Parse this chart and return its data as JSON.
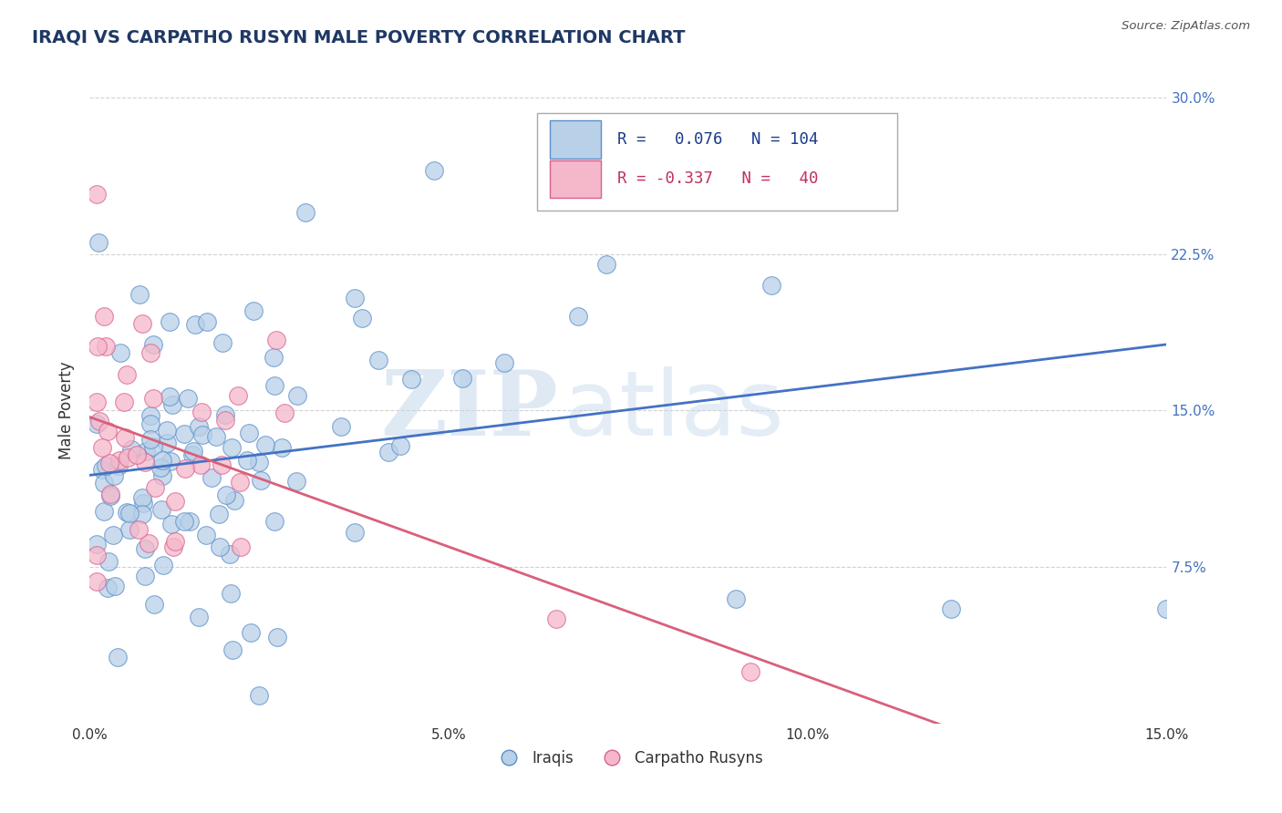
{
  "title": "IRAQI VS CARPATHO RUSYN MALE POVERTY CORRELATION CHART",
  "source": "Source: ZipAtlas.com",
  "ylabel": "Male Poverty",
  "watermark_zip": "ZIP",
  "watermark_atlas": "atlas",
  "xlim": [
    0.0,
    0.15
  ],
  "ylim": [
    0.0,
    0.3
  ],
  "xtick_vals": [
    0.0,
    0.05,
    0.1,
    0.15
  ],
  "xtick_labels": [
    "0.0%",
    "5.0%",
    "10.0%",
    "15.0%"
  ],
  "ytick_vals": [
    0.0,
    0.075,
    0.15,
    0.225,
    0.3
  ],
  "ytick_labels_right": [
    "",
    "7.5%",
    "15.0%",
    "22.5%",
    "30.0%"
  ],
  "iraqis_R": 0.076,
  "iraqis_N": 104,
  "carpatho_R": -0.337,
  "carpatho_N": 40,
  "iraqi_fill": "#b8d0e8",
  "iraqi_edge": "#5b8fc9",
  "carpatho_fill": "#f5b8ca",
  "carpatho_edge": "#d96090",
  "iraqi_line_color": "#4472c4",
  "carpatho_line_color": "#d9607a",
  "background_color": "#ffffff",
  "grid_color": "#cccccc",
  "title_color": "#1f3864",
  "source_color": "#555555",
  "right_tick_color": "#4472c4",
  "legend_edge_color": "#aaaaaa",
  "legend_r1_color": "#1a3a8c",
  "legend_r2_color": "#c0305a"
}
